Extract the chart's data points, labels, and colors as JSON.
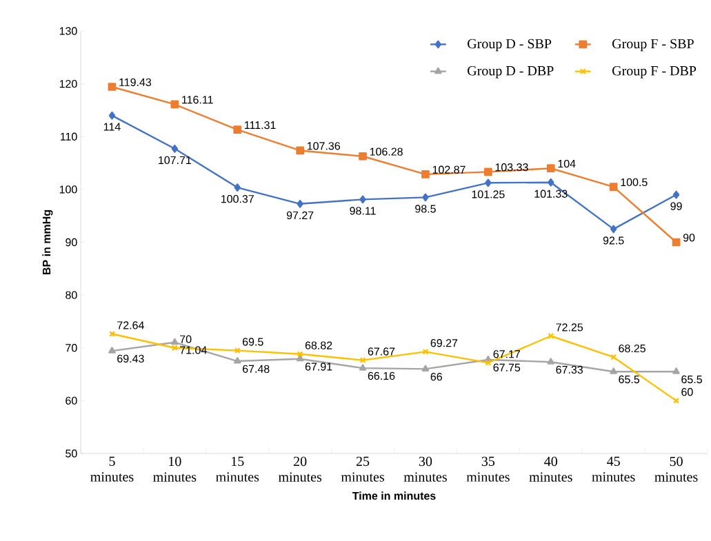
{
  "chart_data": {
    "type": "line",
    "xlabel": "Time in minutes",
    "ylabel": "BP in mmHg",
    "categories": [
      "5 minutes",
      "10 minutes",
      "15 minutes",
      "20 minutes",
      "25 minutes",
      "30 minutes",
      "35 minutes",
      "40 minutes",
      "45 minutes",
      "50 minutes"
    ],
    "series": [
      {
        "name": "Group D - SBP",
        "color": "#4472c4",
        "marker": "diamond",
        "values": [
          114,
          107.71,
          100.37,
          97.27,
          98.11,
          98.5,
          101.25,
          101.33,
          92.5,
          99
        ]
      },
      {
        "name": "Group F - SBP",
        "color": "#ed7d31",
        "marker": "square",
        "values": [
          119.43,
          116.11,
          111.31,
          107.36,
          106.28,
          102.87,
          103.33,
          104,
          100.5,
          90
        ]
      },
      {
        "name": "Group D - DBP",
        "color": "#a5a5a5",
        "marker": "triangle",
        "values": [
          69.43,
          71.04,
          67.48,
          67.91,
          66.16,
          66,
          67.75,
          67.33,
          65.5,
          65.5
        ]
      },
      {
        "name": "Group F - DBP",
        "color": "#ffc000",
        "marker": "cross",
        "values": [
          72.64,
          70,
          69.5,
          68.82,
          67.67,
          69.27,
          67.17,
          72.25,
          68.25,
          60
        ]
      }
    ],
    "ylim": [
      50,
      130
    ],
    "yticks": [
      50,
      60,
      70,
      80,
      90,
      100,
      110,
      120,
      130
    ],
    "data_labels": true,
    "legend": "top right",
    "grid": false,
    "line_style": "solid"
  }
}
